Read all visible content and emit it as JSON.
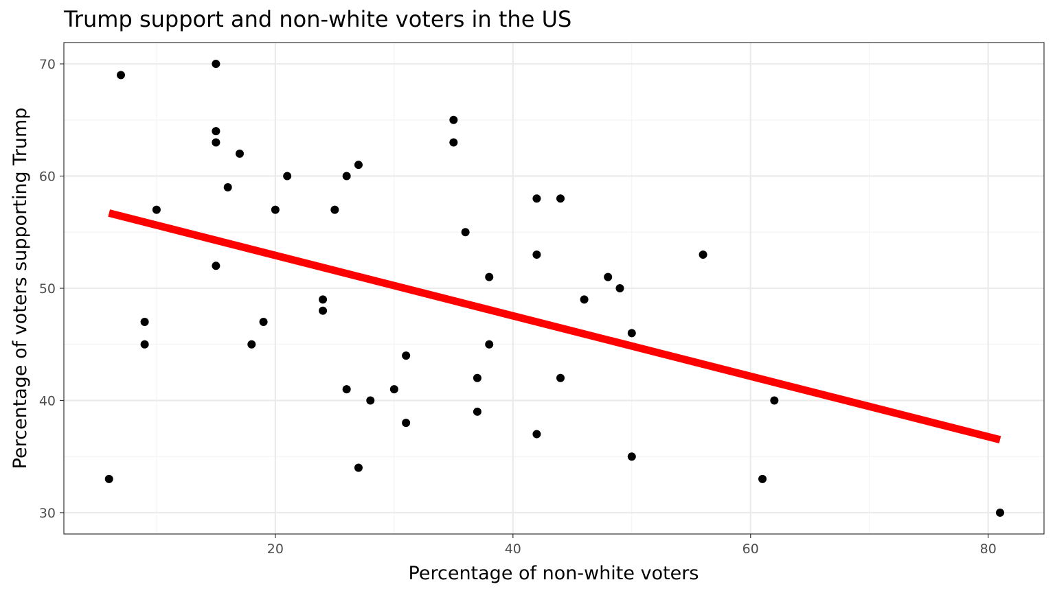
{
  "chart_data": {
    "type": "scatter",
    "title": "Trump support and non-white voters in the US",
    "xlabel": "Percentage of non-white voters",
    "ylabel": "Percentage of voters supporting Trump",
    "xlim": [
      2.2,
      84.7
    ],
    "ylim": [
      28.1,
      71.9
    ],
    "xticks": [
      20,
      40,
      60,
      80
    ],
    "xminor": [
      10,
      30,
      50,
      70
    ],
    "yticks": [
      30,
      40,
      50,
      60,
      70
    ],
    "yminor": [
      35,
      45,
      55,
      65
    ],
    "grid": true,
    "point_color": "#000000",
    "trend_color": "#ff0000",
    "points": [
      [
        6,
        33
      ],
      [
        7,
        69
      ],
      [
        9,
        47
      ],
      [
        9,
        45
      ],
      [
        10,
        57
      ],
      [
        15,
        70
      ],
      [
        15,
        64
      ],
      [
        15,
        63
      ],
      [
        15,
        52
      ],
      [
        16,
        59
      ],
      [
        17,
        62
      ],
      [
        18,
        45
      ],
      [
        19,
        47
      ],
      [
        20,
        57
      ],
      [
        21,
        60
      ],
      [
        24,
        49
      ],
      [
        24,
        48
      ],
      [
        25,
        57
      ],
      [
        26,
        60
      ],
      [
        26,
        41
      ],
      [
        27,
        61
      ],
      [
        27,
        34
      ],
      [
        28,
        40
      ],
      [
        30,
        41
      ],
      [
        31,
        44
      ],
      [
        31,
        38
      ],
      [
        35,
        65
      ],
      [
        35,
        63
      ],
      [
        36,
        55
      ],
      [
        37,
        42
      ],
      [
        37,
        39
      ],
      [
        38,
        51
      ],
      [
        38,
        45
      ],
      [
        42,
        58
      ],
      [
        42,
        53
      ],
      [
        42,
        37
      ],
      [
        44,
        58
      ],
      [
        44,
        42
      ],
      [
        46,
        49
      ],
      [
        48,
        51
      ],
      [
        49,
        50
      ],
      [
        50,
        46
      ],
      [
        50,
        35
      ],
      [
        56,
        53
      ],
      [
        61,
        33
      ],
      [
        62,
        40
      ],
      [
        81,
        30
      ]
    ],
    "trend_line": {
      "x": [
        6,
        81
      ],
      "y": [
        56.7,
        36.5
      ]
    }
  }
}
